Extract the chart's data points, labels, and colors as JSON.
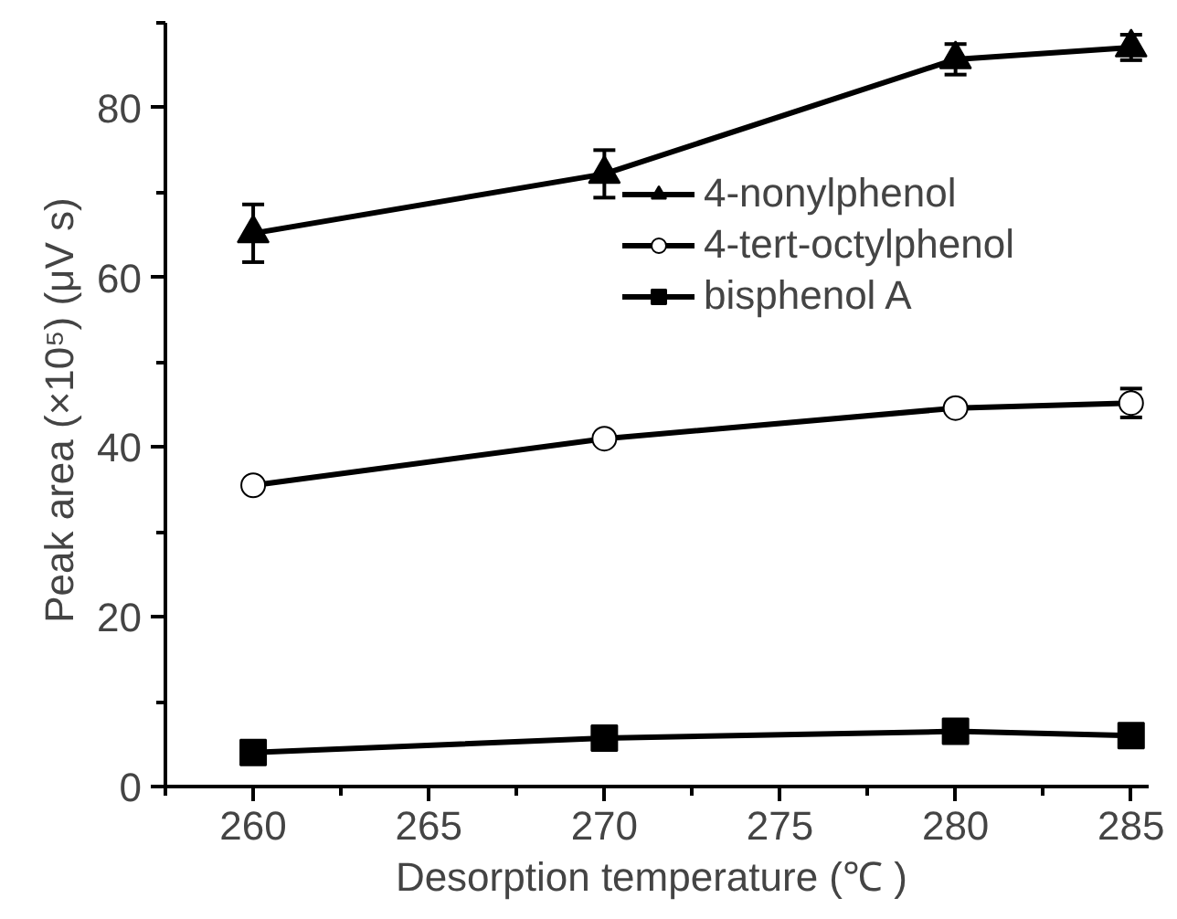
{
  "chart_data": {
    "type": "line",
    "xlabel": "Desorption temperature  (℃ )",
    "ylabel": "Peak area (×10⁵)  (μV s)",
    "x": [
      260,
      270,
      280,
      285
    ],
    "series": [
      {
        "name": "4-nonylphenol",
        "color": "#000000",
        "marker": "triangle",
        "values": [
          65.2,
          72.2,
          85.7,
          87.1
        ],
        "errors": [
          3.4,
          2.8,
          1.8,
          1.5
        ]
      },
      {
        "name": "4-tert-octylphenol",
        "color": "#000000",
        "marker": "circle",
        "values": [
          35.5,
          41.0,
          44.6,
          45.2
        ],
        "errors": [
          null,
          null,
          null,
          1.7
        ]
      },
      {
        "name": "bisphenol A",
        "color": "#000000",
        "marker": "square",
        "values": [
          4.0,
          5.7,
          6.5,
          6.0
        ]
      }
    ],
    "xlim": [
      257.5,
      285.5
    ],
    "ylim": [
      0,
      90
    ],
    "xticks": [
      260,
      265,
      270,
      275,
      280,
      285
    ],
    "yticks": [
      0,
      20,
      40,
      60,
      80
    ],
    "grid": false,
    "legend": "right",
    "line_style": "solid"
  }
}
